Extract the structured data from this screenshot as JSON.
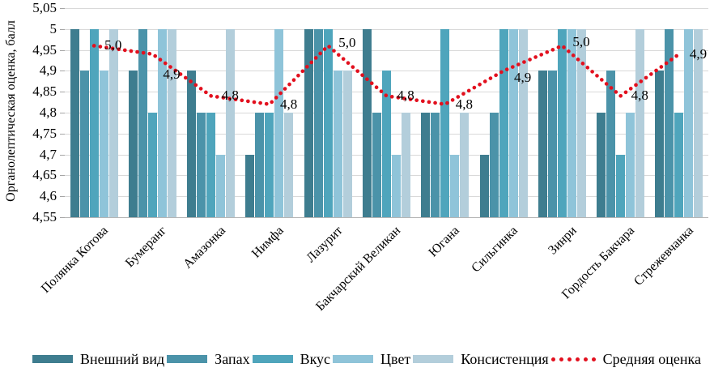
{
  "chart_data": {
    "type": "bar",
    "title": "",
    "ylabel": "Органолептическая оценка, балл",
    "xlabel": "",
    "ylim": [
      4.55,
      5.05
    ],
    "ytick_step": 0.05,
    "ytick_labels": [
      "5,05",
      "5",
      "4,95",
      "4,9",
      "4,85",
      "4,8",
      "4,75",
      "4,7",
      "4,65",
      "4,6",
      "4,55"
    ],
    "grid": true,
    "legend_position": "bottom",
    "categories": [
      "Полянка Котова",
      "Бумеранг",
      "Амазонка",
      "Нимфа",
      "Лазурит",
      "Бакчарский Великан",
      "Югана",
      "Сильгинка",
      "Зинри",
      "Гордость Бакчара",
      "Стрежевчанка"
    ],
    "series": [
      {
        "name": "Внешний вид",
        "color": "#3e7d8f",
        "values": [
          5.0,
          4.9,
          4.9,
          4.7,
          5.0,
          5.0,
          4.8,
          4.7,
          4.9,
          4.8,
          4.9
        ]
      },
      {
        "name": "Запах",
        "color": "#4b93a9",
        "values": [
          4.9,
          5.0,
          4.8,
          4.8,
          5.0,
          4.8,
          4.8,
          4.8,
          4.9,
          4.9,
          5.0
        ]
      },
      {
        "name": "Вкус",
        "color": "#4fa5bc",
        "values": [
          5.0,
          4.8,
          4.8,
          4.8,
          5.0,
          4.9,
          5.0,
          5.0,
          5.0,
          4.7,
          4.8
        ]
      },
      {
        "name": "Цвет",
        "color": "#8fc4d9",
        "values": [
          4.9,
          5.0,
          4.7,
          5.0,
          4.9,
          4.7,
          4.7,
          5.0,
          5.0,
          4.8,
          5.0
        ]
      },
      {
        "name": "Консистенция",
        "color": "#b3cedb",
        "values": [
          5.0,
          5.0,
          5.0,
          4.8,
          4.9,
          4.8,
          4.8,
          5.0,
          5.0,
          5.0,
          5.0
        ]
      }
    ],
    "average_line": {
      "name": "Средняя оценка",
      "color": "#e2101e",
      "style": "dotted",
      "values": [
        4.96,
        4.94,
        4.84,
        4.82,
        4.96,
        4.84,
        4.82,
        4.9,
        4.96,
        4.84,
        4.94
      ],
      "point_labels": [
        "5,0",
        "4,9",
        "4,8",
        "4,8",
        "5,0",
        "4,8",
        "4,8",
        "4,9",
        "5,0",
        "4,8",
        "4,9"
      ]
    }
  }
}
